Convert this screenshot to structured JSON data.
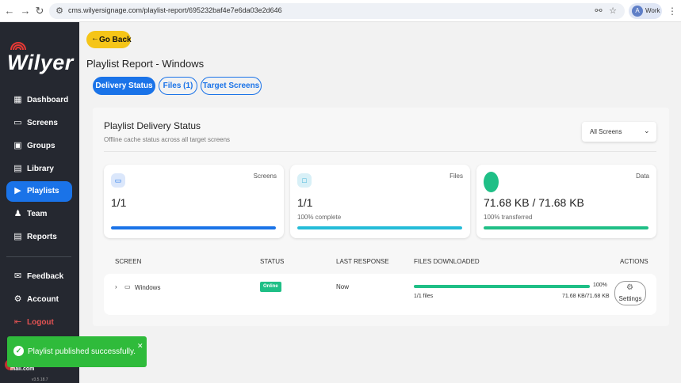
{
  "browser": {
    "url": "cms.wilyersignage.com/playlist-report/695232baf4e7e6da03e2d646",
    "profile_initial": "A",
    "profile_name": "Work"
  },
  "sidebar": {
    "logo_text": "Wilyer",
    "items": [
      {
        "label": "Dashboard",
        "icon": "dashboard-icon"
      },
      {
        "label": "Screens",
        "icon": "monitor-icon"
      },
      {
        "label": "Groups",
        "icon": "grid-icon"
      },
      {
        "label": "Library",
        "icon": "library-icon"
      },
      {
        "label": "Playlists",
        "icon": "playlist-icon",
        "active": true
      },
      {
        "label": "Team",
        "icon": "team-icon"
      },
      {
        "label": "Reports",
        "icon": "reports-icon"
      },
      {
        "label": "Feedback",
        "icon": "feedback-icon"
      },
      {
        "label": "Account",
        "icon": "gear-icon"
      },
      {
        "label": "Logout",
        "icon": "logout-icon"
      }
    ],
    "email_fragment": "mail.com",
    "version": "v3.5.18.7"
  },
  "header": {
    "go_back_label": "Go Back",
    "page_title": "Playlist Report - Windows"
  },
  "tabs": [
    {
      "label": "Delivery Status",
      "active": true
    },
    {
      "label": "Files (1)",
      "active": false
    },
    {
      "label": "Target Screens",
      "active": false
    }
  ],
  "panel": {
    "title": "Playlist Delivery Status",
    "subtitle": "Offline cache status across all target screens",
    "filter_value": "All Screens"
  },
  "cards": [
    {
      "label": "Screens",
      "value": "1/1",
      "sub": "",
      "progress": 1.0,
      "color": "#1a73e8"
    },
    {
      "label": "Files",
      "value": "1/1",
      "sub": "100% complete",
      "progress": 1.0,
      "color": "#24bcd8"
    },
    {
      "label": "Data",
      "value": "71.68 KB / 71.68 KB",
      "sub": "100% transferred",
      "progress": 1.0,
      "color": "#1fbf86"
    }
  ],
  "table": {
    "headers": {
      "screen": "SCREEN",
      "status": "STATUS",
      "last_response": "LAST RESPONSE",
      "files_downloaded": "FILES DOWNLOADED",
      "actions": "ACTIONS"
    },
    "rows": [
      {
        "screen": "Windows",
        "status": "Online",
        "last_response": "Now",
        "progress_pct": "100%",
        "files": "1/1 files",
        "data": "71.68 KB/71.68 KB",
        "progress": 1.0,
        "action_label": "Settings"
      }
    ]
  },
  "toast": {
    "message": "Playlist published successfully.",
    "color": "#2fbb3b"
  }
}
